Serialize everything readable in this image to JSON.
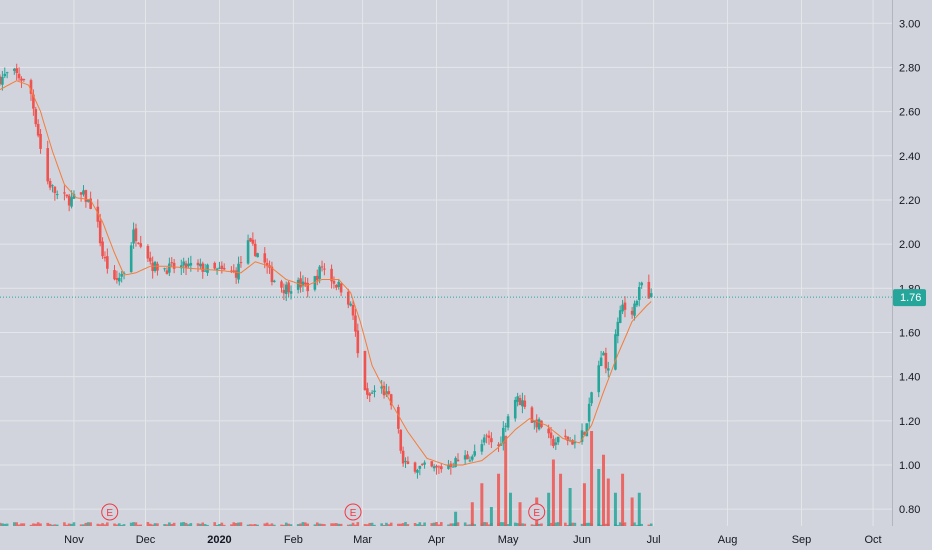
{
  "colors": {
    "background": "#d1d4dc",
    "grid": "#e4e6ea",
    "up": "#26a69a",
    "down": "#ef5350",
    "ma": "#f57c3a",
    "price_line": "#26a69a",
    "earnings": "#f23645"
  },
  "price_tag": "1.76",
  "earnings_label": "E",
  "chart_data": {
    "type": "candlestick",
    "title": "",
    "y_axis_ticks": [
      "3.00",
      "2.80",
      "2.60",
      "2.40",
      "2.20",
      "2.00",
      "1.80",
      "1.60",
      "1.40",
      "1.20",
      "1.00",
      "0.80"
    ],
    "ylim": [
      0.76,
      3.06
    ],
    "x_axis_ticks": [
      {
        "label": "Nov",
        "date": "2019-11-01",
        "bold": false
      },
      {
        "label": "Dec",
        "date": "2019-12-01",
        "bold": false
      },
      {
        "label": "2020",
        "date": "2020-01-01",
        "bold": true
      },
      {
        "label": "Feb",
        "date": "2020-02-01",
        "bold": false
      },
      {
        "label": "Mar",
        "date": "2020-03-01",
        "bold": false
      },
      {
        "label": "Apr",
        "date": "2020-04-01",
        "bold": false
      },
      {
        "label": "May",
        "date": "2020-05-01",
        "bold": false
      },
      {
        "label": "Jun",
        "date": "2020-06-01",
        "bold": false
      },
      {
        "label": "Jul",
        "date": "2020-07-01",
        "bold": false
      },
      {
        "label": "Aug",
        "date": "2020-08-01",
        "bold": false
      },
      {
        "label": "Sep",
        "date": "2020-09-01",
        "bold": false
      },
      {
        "label": "Oct",
        "date": "2020-10-01",
        "bold": false
      }
    ],
    "current_price": 1.76,
    "earnings_dates": [
      "2019-11-16",
      "2020-02-26",
      "2020-05-13"
    ],
    "price_anchors": [
      [
        "2019-10-01",
        2.75
      ],
      [
        "2019-10-06",
        2.78
      ],
      [
        "2019-10-10",
        2.75
      ],
      [
        "2019-10-14",
        2.68
      ],
      [
        "2019-10-17",
        2.5
      ],
      [
        "2019-10-20",
        2.3
      ],
      [
        "2019-10-25",
        2.22
      ],
      [
        "2019-10-30",
        2.2
      ],
      [
        "2019-11-05",
        2.22
      ],
      [
        "2019-11-10",
        2.15
      ],
      [
        "2019-11-13",
        1.95
      ],
      [
        "2019-11-18",
        1.82
      ],
      [
        "2019-11-22",
        1.88
      ],
      [
        "2019-11-26",
        2.05
      ],
      [
        "2019-11-30",
        2.0
      ],
      [
        "2019-12-04",
        1.9
      ],
      [
        "2019-12-10",
        1.89
      ],
      [
        "2019-12-20",
        1.9
      ],
      [
        "2019-12-30",
        1.88
      ],
      [
        "2020-01-08",
        1.87
      ],
      [
        "2020-01-13",
        2.0
      ],
      [
        "2020-01-18",
        1.95
      ],
      [
        "2020-01-23",
        1.85
      ],
      [
        "2020-01-28",
        1.8
      ],
      [
        "2020-02-03",
        1.82
      ],
      [
        "2020-02-08",
        1.8
      ],
      [
        "2020-02-13",
        1.9
      ],
      [
        "2020-02-18",
        1.83
      ],
      [
        "2020-02-23",
        1.78
      ],
      [
        "2020-02-26",
        1.68
      ],
      [
        "2020-02-28",
        1.5
      ],
      [
        "2020-03-03",
        1.3
      ],
      [
        "2020-03-08",
        1.36
      ],
      [
        "2020-03-12",
        1.3
      ],
      [
        "2020-03-15",
        1.22
      ],
      [
        "2020-03-18",
        1.0
      ],
      [
        "2020-03-25",
        0.99
      ],
      [
        "2020-04-01",
        0.98
      ],
      [
        "2020-04-10",
        1.02
      ],
      [
        "2020-04-17",
        1.05
      ],
      [
        "2020-04-22",
        1.12
      ],
      [
        "2020-04-27",
        1.08
      ],
      [
        "2020-04-30",
        1.2
      ],
      [
        "2020-05-04",
        1.3
      ],
      [
        "2020-05-08",
        1.28
      ],
      [
        "2020-05-11",
        1.2
      ],
      [
        "2020-05-15",
        1.18
      ],
      [
        "2020-05-19",
        1.1
      ],
      [
        "2020-05-25",
        1.12
      ],
      [
        "2020-05-30",
        1.1
      ],
      [
        "2020-06-03",
        1.18
      ],
      [
        "2020-06-06",
        1.4
      ],
      [
        "2020-06-10",
        1.5
      ],
      [
        "2020-06-12",
        1.42
      ],
      [
        "2020-06-15",
        1.6
      ],
      [
        "2020-06-18",
        1.72
      ],
      [
        "2020-06-21",
        1.68
      ],
      [
        "2020-06-24",
        1.75
      ],
      [
        "2020-06-26",
        1.82
      ],
      [
        "2020-06-28",
        1.72
      ],
      [
        "2020-06-30",
        1.76
      ]
    ],
    "ma_anchors": [
      [
        "2019-10-01",
        2.7
      ],
      [
        "2019-10-08",
        2.74
      ],
      [
        "2019-10-13",
        2.72
      ],
      [
        "2019-10-18",
        2.6
      ],
      [
        "2019-10-23",
        2.42
      ],
      [
        "2019-10-28",
        2.27
      ],
      [
        "2019-11-02",
        2.21
      ],
      [
        "2019-11-08",
        2.2
      ],
      [
        "2019-11-13",
        2.1
      ],
      [
        "2019-11-18",
        1.96
      ],
      [
        "2019-11-22",
        1.86
      ],
      [
        "2019-11-27",
        1.87
      ],
      [
        "2019-12-03",
        1.9
      ],
      [
        "2019-12-10",
        1.9
      ],
      [
        "2019-12-20",
        1.89
      ],
      [
        "2020-01-02",
        1.88
      ],
      [
        "2020-01-10",
        1.87
      ],
      [
        "2020-01-16",
        1.92
      ],
      [
        "2020-01-22",
        1.9
      ],
      [
        "2020-01-29",
        1.84
      ],
      [
        "2020-02-06",
        1.81
      ],
      [
        "2020-02-13",
        1.84
      ],
      [
        "2020-02-20",
        1.84
      ],
      [
        "2020-02-25",
        1.78
      ],
      [
        "2020-02-29",
        1.65
      ],
      [
        "2020-03-05",
        1.45
      ],
      [
        "2020-03-12",
        1.3
      ],
      [
        "2020-03-20",
        1.15
      ],
      [
        "2020-03-28",
        1.03
      ],
      [
        "2020-04-05",
        1.0
      ],
      [
        "2020-04-12",
        1.0
      ],
      [
        "2020-04-20",
        1.02
      ],
      [
        "2020-04-27",
        1.08
      ],
      [
        "2020-05-04",
        1.16
      ],
      [
        "2020-05-10",
        1.21
      ],
      [
        "2020-05-17",
        1.18
      ],
      [
        "2020-05-24",
        1.12
      ],
      [
        "2020-05-31",
        1.1
      ],
      [
        "2020-06-05",
        1.18
      ],
      [
        "2020-06-10",
        1.33
      ],
      [
        "2020-06-16",
        1.5
      ],
      [
        "2020-06-22",
        1.65
      ],
      [
        "2020-06-28",
        1.72
      ],
      [
        "2020-06-30",
        1.74
      ]
    ],
    "volume_spikes": [
      {
        "date": "2020-04-09",
        "value": 0.15
      },
      {
        "date": "2020-04-16",
        "value": 0.25
      },
      {
        "date": "2020-04-20",
        "value": 0.45
      },
      {
        "date": "2020-04-24",
        "value": 0.2
      },
      {
        "date": "2020-04-27",
        "value": 0.55
      },
      {
        "date": "2020-04-30",
        "value": 0.95
      },
      {
        "date": "2020-05-02",
        "value": 0.35
      },
      {
        "date": "2020-05-06",
        "value": 0.25
      },
      {
        "date": "2020-05-13",
        "value": 0.3
      },
      {
        "date": "2020-05-18",
        "value": 0.35
      },
      {
        "date": "2020-05-20",
        "value": 0.7
      },
      {
        "date": "2020-05-23",
        "value": 0.55
      },
      {
        "date": "2020-05-27",
        "value": 0.4
      },
      {
        "date": "2020-06-02",
        "value": 0.45
      },
      {
        "date": "2020-06-05",
        "value": 1.0
      },
      {
        "date": "2020-06-08",
        "value": 0.6
      },
      {
        "date": "2020-06-10",
        "value": 0.75
      },
      {
        "date": "2020-06-12",
        "value": 0.5
      },
      {
        "date": "2020-06-15",
        "value": 0.35
      },
      {
        "date": "2020-06-18",
        "value": 0.55
      },
      {
        "date": "2020-06-22",
        "value": 0.3
      },
      {
        "date": "2020-06-25",
        "value": 0.35
      }
    ]
  }
}
